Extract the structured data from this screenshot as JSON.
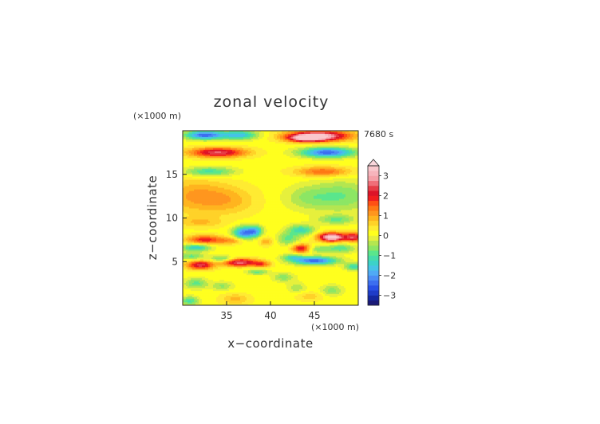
{
  "chart_data": {
    "type": "heatmap",
    "title": "zonal velocity",
    "time_label": "7680 s",
    "xlabel": "x−coordinate",
    "ylabel": "z−coordinate",
    "x_unit": "(×1000 m)",
    "y_unit": "(×1000 m)",
    "xlim": [
      30,
      50
    ],
    "ylim": [
      0,
      20
    ],
    "x_ticks": [
      35,
      40,
      45
    ],
    "y_ticks": [
      5,
      10,
      15
    ],
    "x_tick_labels": [
      "35",
      "40",
      "45"
    ],
    "y_tick_labels": [
      "5",
      "10",
      "15"
    ],
    "colorbar": {
      "levels": [
        -3.5,
        -3.25,
        -3,
        -2.75,
        -2.5,
        -2.25,
        -2,
        -1.75,
        -1.5,
        -1.25,
        -1,
        -0.75,
        -0.5,
        -0.25,
        0,
        0.25,
        0.5,
        0.75,
        1,
        1.25,
        1.5,
        1.75,
        2,
        2.25,
        2.5,
        2.75,
        3,
        3.25,
        3.5
      ],
      "colors": [
        "#1a1a78",
        "#1428a0",
        "#1e3cc8",
        "#2850e6",
        "#3c6ef0",
        "#4b8cf5",
        "#50aaf5",
        "#46c3e6",
        "#3cd2c8",
        "#46dcaa",
        "#5ae68c",
        "#8ce664",
        "#b4e650",
        "#e6f03c",
        "#ffff1e",
        "#ffeb32",
        "#ffd228",
        "#ffb41e",
        "#ff961e",
        "#ff7814",
        "#ff5014",
        "#f01e1e",
        "#dc1428",
        "#e63c46",
        "#f06e78",
        "#f5a0a8",
        "#f7b4bc",
        "#fac8cd"
      ],
      "tick_values": [
        3,
        2,
        1,
        0,
        -1,
        -2,
        -3
      ],
      "tick_labels": [
        "3",
        "2",
        "1",
        "0",
        "−1",
        "−2",
        "−3"
      ],
      "extend": "max"
    },
    "z_features": [
      {
        "x": 32.5,
        "z": 19.5,
        "value": -2.6,
        "sx": 2.2,
        "sz": 0.5
      },
      {
        "x": 36.5,
        "z": 19.5,
        "value": -1.8,
        "sx": 2.0,
        "sz": 0.5
      },
      {
        "x": 45.5,
        "z": 19.4,
        "value": 3.2,
        "sx": 3.5,
        "sz": 0.6
      },
      {
        "x": 44.0,
        "z": 19.1,
        "value": 2.0,
        "sx": 2.0,
        "sz": 0.4
      },
      {
        "x": 34.0,
        "z": 17.5,
        "value": 2.4,
        "sx": 3.2,
        "sz": 0.55
      },
      {
        "x": 46.5,
        "z": 17.5,
        "value": -2.6,
        "sx": 3.0,
        "sz": 0.55
      },
      {
        "x": 33.0,
        "z": 15.3,
        "value": -1.3,
        "sx": 2.8,
        "sz": 0.55
      },
      {
        "x": 46.0,
        "z": 15.3,
        "value": 1.4,
        "sx": 3.0,
        "sz": 0.55
      },
      {
        "x": 31.5,
        "z": 12.5,
        "value": 0.9,
        "sx": 3.6,
        "sz": 2.0
      },
      {
        "x": 35.5,
        "z": 12.0,
        "value": 0.6,
        "sx": 3.0,
        "sz": 1.6
      },
      {
        "x": 48.0,
        "z": 12.5,
        "value": -0.9,
        "sx": 3.8,
        "sz": 1.8
      },
      {
        "x": 44.0,
        "z": 12.3,
        "value": -0.5,
        "sx": 2.5,
        "sz": 1.3
      },
      {
        "x": 47.5,
        "z": 9.8,
        "value": -0.9,
        "sx": 2.0,
        "sz": 0.5
      },
      {
        "x": 32.0,
        "z": 9.5,
        "value": 0.6,
        "sx": 2.5,
        "sz": 0.6
      },
      {
        "x": 37.0,
        "z": 8.3,
        "value": -2.4,
        "sx": 1.2,
        "sz": 0.7
      },
      {
        "x": 38.3,
        "z": 8.5,
        "value": -1.6,
        "sx": 0.8,
        "sz": 0.6
      },
      {
        "x": 32.5,
        "z": 7.5,
        "value": 1.8,
        "sx": 2.0,
        "sz": 0.5
      },
      {
        "x": 35.5,
        "z": 7.4,
        "value": 0.9,
        "sx": 1.5,
        "sz": 0.4
      },
      {
        "x": 31.5,
        "z": 6.6,
        "value": -1.6,
        "sx": 1.6,
        "sz": 0.4
      },
      {
        "x": 43.5,
        "z": 8.6,
        "value": -1.4,
        "sx": 1.5,
        "sz": 0.6
      },
      {
        "x": 42.0,
        "z": 7.6,
        "value": -1.0,
        "sx": 1.2,
        "sz": 0.7
      },
      {
        "x": 47.0,
        "z": 7.8,
        "value": 3.6,
        "sx": 1.5,
        "sz": 0.5
      },
      {
        "x": 49.5,
        "z": 7.8,
        "value": 2.2,
        "sx": 1.0,
        "sz": 0.5
      },
      {
        "x": 43.5,
        "z": 6.5,
        "value": 2.0,
        "sx": 1.0,
        "sz": 0.5
      },
      {
        "x": 48.0,
        "z": 6.5,
        "value": -1.1,
        "sx": 1.6,
        "sz": 0.5
      },
      {
        "x": 45.5,
        "z": 6.4,
        "value": -0.8,
        "sx": 1.2,
        "sz": 0.4
      },
      {
        "x": 39.5,
        "z": 7.3,
        "value": 0.8,
        "sx": 0.8,
        "sz": 0.5
      },
      {
        "x": 31.0,
        "z": 5.6,
        "value": -1.0,
        "sx": 1.5,
        "sz": 0.4
      },
      {
        "x": 32.0,
        "z": 4.6,
        "value": 2.3,
        "sx": 1.5,
        "sz": 0.5
      },
      {
        "x": 36.5,
        "z": 4.9,
        "value": 2.5,
        "sx": 2.0,
        "sz": 0.45
      },
      {
        "x": 34.5,
        "z": 5.3,
        "value": -1.2,
        "sx": 1.3,
        "sz": 0.35
      },
      {
        "x": 39.0,
        "z": 4.7,
        "value": 1.3,
        "sx": 1.0,
        "sz": 0.35
      },
      {
        "x": 45.0,
        "z": 5.1,
        "value": -2.6,
        "sx": 2.5,
        "sz": 0.45
      },
      {
        "x": 42.5,
        "z": 5.5,
        "value": -1.1,
        "sx": 1.2,
        "sz": 0.35
      },
      {
        "x": 49.5,
        "z": 4.4,
        "value": -1.4,
        "sx": 1.0,
        "sz": 0.4
      },
      {
        "x": 38.5,
        "z": 3.8,
        "value": -1.0,
        "sx": 1.2,
        "sz": 0.3
      },
      {
        "x": 41.5,
        "z": 3.2,
        "value": -0.8,
        "sx": 1.2,
        "sz": 0.5
      },
      {
        "x": 31.5,
        "z": 2.5,
        "value": -1.0,
        "sx": 1.3,
        "sz": 0.6
      },
      {
        "x": 34.5,
        "z": 2.2,
        "value": -0.7,
        "sx": 1.2,
        "sz": 0.5
      },
      {
        "x": 43.0,
        "z": 2.0,
        "value": -0.6,
        "sx": 1.0,
        "sz": 0.6
      },
      {
        "x": 47.0,
        "z": 1.7,
        "value": -0.8,
        "sx": 1.2,
        "sz": 0.6
      },
      {
        "x": 36.0,
        "z": 0.7,
        "value": 0.7,
        "sx": 1.6,
        "sz": 0.6
      },
      {
        "x": 30.8,
        "z": 0.5,
        "value": -1.2,
        "sx": 1.0,
        "sz": 0.5
      },
      {
        "x": 44.5,
        "z": 1.0,
        "value": 0.5,
        "sx": 1.5,
        "sz": 0.5
      }
    ]
  }
}
